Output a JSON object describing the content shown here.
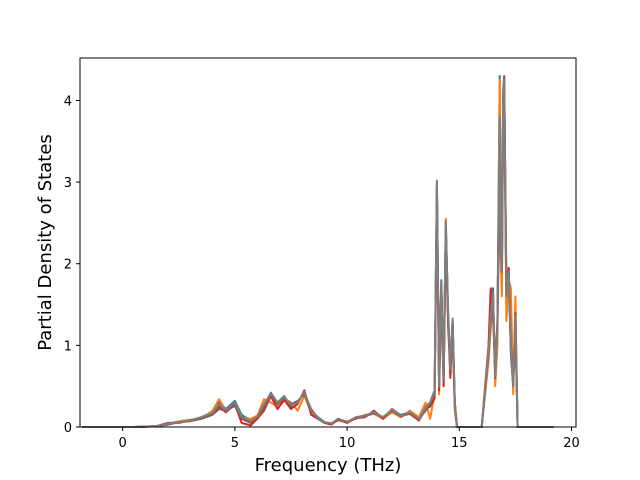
{
  "chart_data": {
    "type": "line",
    "title": "",
    "xlabel": "Frequency (THz)",
    "ylabel": "Partial Density of States",
    "xlim": [
      -1.9,
      20.2
    ],
    "ylim": [
      0,
      4.52
    ],
    "xticks": [
      0,
      5,
      10,
      15,
      20
    ],
    "yticks": [
      0,
      1,
      2,
      3,
      4
    ],
    "grid": false,
    "legend": "none",
    "series": [
      {
        "color": "#1f77b4",
        "peak_scale": 1.0,
        "x": [
          -1.8,
          0.5,
          1.5,
          2.0,
          2.5,
          3.0,
          3.5,
          4.0,
          4.3,
          4.6,
          5.0,
          5.3,
          5.7,
          6.0,
          6.3,
          6.6,
          6.9,
          7.2,
          7.5,
          7.8,
          8.1,
          8.4,
          8.7,
          9.0,
          9.3,
          9.6,
          10.0,
          10.4,
          10.8,
          11.2,
          11.6,
          12.0,
          12.4,
          12.8,
          13.2,
          13.5,
          13.7,
          13.9,
          14.0,
          14.1,
          14.2,
          14.3,
          14.4,
          14.5,
          14.6,
          14.7,
          14.8,
          14.9,
          15.0,
          15.5,
          16.0,
          16.3,
          16.4,
          16.5,
          16.6,
          16.7,
          16.8,
          16.85,
          16.9,
          16.95,
          17.0,
          17.1,
          17.2,
          17.3,
          17.4,
          17.5,
          17.6,
          18.0,
          19.2
        ],
        "y": [
          0,
          0,
          0.01,
          0.03,
          0.06,
          0.08,
          0.12,
          0.18,
          0.3,
          0.22,
          0.32,
          0.15,
          0.08,
          0.12,
          0.25,
          0.42,
          0.3,
          0.38,
          0.25,
          0.3,
          0.42,
          0.2,
          0.12,
          0.06,
          0.04,
          0.1,
          0.06,
          0.12,
          0.14,
          0.18,
          0.12,
          0.2,
          0.15,
          0.18,
          0.1,
          0.25,
          0.3,
          0.45,
          3.0,
          0.5,
          1.8,
          0.6,
          2.5,
          1.4,
          0.7,
          1.3,
          0.3,
          0.0,
          0.0,
          0.0,
          0.0,
          0.9,
          1.3,
          1.7,
          0.6,
          1.2,
          4.3,
          2.2,
          1.8,
          3.9,
          4.2,
          1.5,
          1.9,
          0.9,
          0.5,
          1.3,
          0.0,
          0.0,
          0
        ]
      },
      {
        "color": "#ff7f0e",
        "peak_scale": 1.0,
        "x": [
          -1.8,
          0.5,
          1.5,
          2.0,
          2.5,
          3.0,
          3.5,
          4.0,
          4.3,
          4.6,
          5.0,
          5.3,
          5.7,
          6.0,
          6.3,
          6.6,
          6.9,
          7.2,
          7.5,
          7.8,
          8.1,
          8.4,
          8.7,
          9.0,
          9.3,
          9.6,
          10.0,
          10.4,
          10.8,
          11.2,
          11.6,
          12.0,
          12.4,
          12.8,
          13.2,
          13.5,
          13.7,
          13.9,
          14.0,
          14.1,
          14.2,
          14.3,
          14.4,
          14.5,
          14.6,
          14.7,
          14.8,
          14.9,
          15.0,
          15.5,
          16.0,
          16.3,
          16.4,
          16.5,
          16.6,
          16.7,
          16.8,
          16.85,
          16.9,
          16.95,
          17.0,
          17.1,
          17.2,
          17.3,
          17.4,
          17.5,
          17.6,
          18.0,
          19.2
        ],
        "y": [
          0,
          0,
          0.01,
          0.04,
          0.07,
          0.09,
          0.1,
          0.2,
          0.34,
          0.2,
          0.3,
          0.12,
          0.1,
          0.14,
          0.34,
          0.3,
          0.25,
          0.35,
          0.3,
          0.2,
          0.38,
          0.18,
          0.1,
          0.05,
          0.05,
          0.08,
          0.07,
          0.1,
          0.15,
          0.16,
          0.1,
          0.18,
          0.12,
          0.2,
          0.12,
          0.3,
          0.1,
          0.4,
          2.9,
          0.4,
          1.6,
          0.5,
          2.55,
          1.2,
          0.8,
          1.1,
          0.2,
          0.0,
          0.0,
          0.0,
          0.0,
          0.8,
          1.2,
          1.5,
          0.5,
          1.0,
          4.25,
          2.0,
          1.6,
          3.8,
          4.1,
          1.3,
          1.8,
          1.7,
          0.4,
          1.6,
          0.0,
          0.0,
          0
        ]
      },
      {
        "color": "#d62728",
        "peak_scale": 1.0,
        "x": [
          -1.8,
          0.5,
          1.5,
          2.0,
          2.5,
          3.0,
          3.5,
          4.0,
          4.3,
          4.6,
          5.0,
          5.3,
          5.7,
          6.0,
          6.3,
          6.6,
          6.9,
          7.2,
          7.5,
          7.8,
          8.1,
          8.4,
          8.7,
          9.0,
          9.3,
          9.6,
          10.0,
          10.4,
          10.8,
          11.2,
          11.6,
          12.0,
          12.4,
          12.8,
          13.2,
          13.5,
          13.7,
          13.9,
          14.0,
          14.1,
          14.2,
          14.3,
          14.4,
          14.5,
          14.6,
          14.7,
          14.8,
          14.9,
          15.0,
          15.5,
          16.0,
          16.3,
          16.4,
          16.5,
          16.6,
          16.7,
          16.8,
          16.85,
          16.9,
          16.95,
          17.0,
          17.1,
          17.2,
          17.3,
          17.4,
          17.5,
          17.6,
          18.0,
          19.2
        ],
        "y": [
          0,
          0,
          0.01,
          0.05,
          0.05,
          0.08,
          0.11,
          0.16,
          0.25,
          0.18,
          0.28,
          0.05,
          0.02,
          0.1,
          0.2,
          0.38,
          0.22,
          0.33,
          0.22,
          0.28,
          0.45,
          0.15,
          0.1,
          0.05,
          0.03,
          0.09,
          0.05,
          0.11,
          0.12,
          0.2,
          0.1,
          0.22,
          0.14,
          0.16,
          0.08,
          0.22,
          0.25,
          0.35,
          2.8,
          0.45,
          1.7,
          0.5,
          2.3,
          1.3,
          0.6,
          1.2,
          0.25,
          0.0,
          0.0,
          0.0,
          0.0,
          1.0,
          1.7,
          1.4,
          0.7,
          1.3,
          3.5,
          2.5,
          1.9,
          4.0,
          4.28,
          1.8,
          1.95,
          1.0,
          0.6,
          1.2,
          0.0,
          0.0,
          0
        ]
      },
      {
        "color": "#8c564b",
        "peak_scale": 1.0,
        "x": [
          -1.8,
          0.5,
          1.5,
          2.0,
          2.5,
          3.0,
          3.5,
          4.0,
          4.3,
          4.6,
          5.0,
          5.3,
          5.7,
          6.0,
          6.3,
          6.6,
          6.9,
          7.2,
          7.5,
          7.8,
          8.1,
          8.4,
          8.7,
          9.0,
          9.3,
          9.6,
          10.0,
          10.4,
          10.8,
          11.2,
          11.6,
          12.0,
          12.4,
          12.8,
          13.2,
          13.5,
          13.7,
          13.9,
          14.0,
          14.1,
          14.2,
          14.3,
          14.4,
          14.5,
          14.6,
          14.7,
          14.8,
          14.9,
          15.0,
          15.5,
          16.0,
          16.3,
          16.4,
          16.5,
          16.6,
          16.7,
          16.8,
          16.85,
          16.9,
          16.95,
          17.0,
          17.1,
          17.2,
          17.3,
          17.4,
          17.5,
          17.6,
          18.0,
          19.2
        ],
        "y": [
          0,
          0,
          0.01,
          0.03,
          0.06,
          0.07,
          0.1,
          0.15,
          0.22,
          0.2,
          0.26,
          0.1,
          0.05,
          0.12,
          0.22,
          0.4,
          0.28,
          0.36,
          0.28,
          0.32,
          0.4,
          0.22,
          0.1,
          0.06,
          0.04,
          0.1,
          0.06,
          0.12,
          0.13,
          0.17,
          0.12,
          0.2,
          0.13,
          0.17,
          0.1,
          0.2,
          0.28,
          0.4,
          2.95,
          0.5,
          1.75,
          0.55,
          2.45,
          1.35,
          0.7,
          1.3,
          0.3,
          0.0,
          0.0,
          0.0,
          0.0,
          0.9,
          1.3,
          1.6,
          0.6,
          1.2,
          3.0,
          2.1,
          2.0,
          4.1,
          4.3,
          1.6,
          1.9,
          0.9,
          0.5,
          1.4,
          0.0,
          0.0,
          0
        ]
      },
      {
        "color": "#7f7f7f",
        "peak_scale": 1.0,
        "x": [
          -1.8,
          0.5,
          1.5,
          2.0,
          2.5,
          3.0,
          3.5,
          4.0,
          4.3,
          4.6,
          5.0,
          5.3,
          5.7,
          6.0,
          6.3,
          6.6,
          6.9,
          7.2,
          7.5,
          7.8,
          8.1,
          8.4,
          8.7,
          9.0,
          9.3,
          9.6,
          10.0,
          10.4,
          10.8,
          11.2,
          11.6,
          12.0,
          12.4,
          12.8,
          13.2,
          13.5,
          13.7,
          13.9,
          14.0,
          14.1,
          14.2,
          14.3,
          14.4,
          14.5,
          14.6,
          14.7,
          14.8,
          14.9,
          15.0,
          15.5,
          16.0,
          16.3,
          16.4,
          16.5,
          16.6,
          16.7,
          16.8,
          16.85,
          16.9,
          16.95,
          17.0,
          17.1,
          17.2,
          17.3,
          17.4,
          17.5,
          17.6,
          18.0,
          19.2
        ],
        "y": [
          0,
          0,
          0.01,
          0.04,
          0.06,
          0.08,
          0.12,
          0.17,
          0.28,
          0.21,
          0.3,
          0.13,
          0.07,
          0.13,
          0.28,
          0.41,
          0.3,
          0.37,
          0.27,
          0.3,
          0.43,
          0.2,
          0.11,
          0.06,
          0.04,
          0.1,
          0.06,
          0.12,
          0.14,
          0.18,
          0.12,
          0.21,
          0.14,
          0.18,
          0.1,
          0.24,
          0.3,
          0.43,
          3.02,
          0.5,
          1.78,
          0.58,
          2.52,
          1.42,
          0.72,
          1.33,
          0.3,
          0.0,
          0.0,
          0.0,
          0.0,
          0.95,
          1.35,
          1.65,
          0.62,
          1.25,
          3.8,
          2.2,
          1.9,
          3.9,
          4.25,
          1.6,
          1.9,
          1.0,
          0.5,
          1.35,
          0.0,
          0.0,
          0
        ]
      }
    ]
  }
}
